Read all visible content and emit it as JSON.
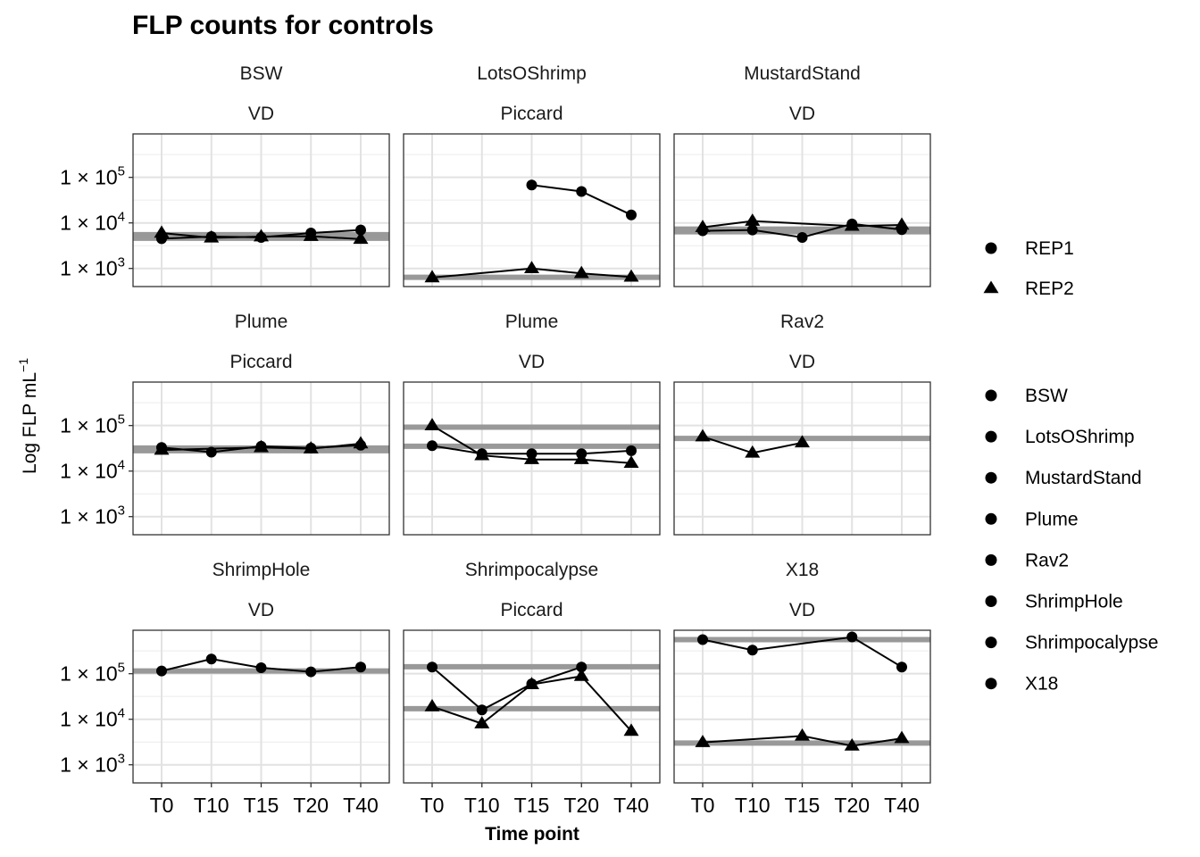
{
  "chart_data": {
    "type": "line",
    "title": "FLP counts for controls",
    "xlabel": "Time point",
    "ylabel": "Log FLP  mL",
    "ylabel_superscript": "−1",
    "y_scale": "log10",
    "ylim": [
      400,
      900000
    ],
    "y_ticks": [
      1000,
      10000,
      100000
    ],
    "y_tick_labels": [
      {
        "base": "1 × 10",
        "exp": "3"
      },
      {
        "base": "1 × 10",
        "exp": "4"
      },
      {
        "base": "1 × 10",
        "exp": "5"
      }
    ],
    "categories": [
      "T0",
      "T10",
      "T15",
      "T20",
      "T40"
    ],
    "grid": true,
    "legend_position": "right",
    "legend": {
      "replicates": [
        {
          "label": "REP1",
          "shape": "circle"
        },
        {
          "label": "REP2",
          "shape": "triangle"
        }
      ],
      "sites": [
        "BSW",
        "LotsOShrimp",
        "MustardStand",
        "Plume",
        "Rav2",
        "ShrimpHole",
        "Shrimpocalypse",
        "X18"
      ]
    },
    "panels": [
      {
        "site": "BSW",
        "cruise": "VD",
        "hlines": [
          {
            "y": 5500
          },
          {
            "y": 4600
          }
        ],
        "series": [
          {
            "name": "REP1",
            "values": [
              4500,
              5000,
              4800,
              6000,
              7000
            ]
          },
          {
            "name": "REP2",
            "values": [
              6000,
              4700,
              5000,
              5100,
              4400
            ]
          }
        ]
      },
      {
        "site": "LotsOShrimp",
        "cruise": "Piccard",
        "hlines": [
          {
            "y": 640
          }
        ],
        "series": [
          {
            "name": "REP1",
            "values": [
              null,
              null,
              68000,
              49000,
              15000
            ]
          },
          {
            "name": "REP2",
            "values": [
              630,
              null,
              1000,
              780,
              650
            ]
          }
        ]
      },
      {
        "site": "MustardStand",
        "cruise": "VD",
        "hlines": [
          {
            "y": 7300
          },
          {
            "y": 6400
          }
        ],
        "series": [
          {
            "name": "REP1",
            "values": [
              6700,
              7000,
              4800,
              9500,
              7100
            ]
          },
          {
            "name": "REP2",
            "values": [
              8000,
              11000,
              null,
              8500,
              9000
            ]
          }
        ]
      },
      {
        "site": "Plume",
        "cruise": "Piccard",
        "hlines": [
          {
            "y": 32000
          },
          {
            "y": 28000
          }
        ],
        "series": [
          {
            "name": "REP1",
            "values": [
              33000,
              26000,
              35000,
              32000,
              37000
            ]
          },
          {
            "name": "REP2",
            "values": [
              29000,
              null,
              33000,
              31000,
              40000
            ]
          }
        ]
      },
      {
        "site": "Plume",
        "cruise": "VD",
        "hlines": [
          {
            "y": 92000
          },
          {
            "y": 35000
          }
        ],
        "series": [
          {
            "name": "REP1",
            "values": [
              36000,
              24000,
              24000,
              24000,
              28000
            ]
          },
          {
            "name": "REP2",
            "values": [
              100000,
              22000,
              18000,
              18000,
              15000
            ]
          }
        ]
      },
      {
        "site": "Rav2",
        "cruise": "VD",
        "hlines": [
          {
            "y": 52000
          }
        ],
        "series": [
          {
            "name": "REP2",
            "values": [
              57000,
              25000,
              42000,
              null,
              null
            ]
          }
        ]
      },
      {
        "site": "ShrimpHole",
        "cruise": "VD",
        "hlines": [
          {
            "y": 115000
          }
        ],
        "series": [
          {
            "name": "REP1",
            "values": [
              115000,
              210000,
              135000,
              110000,
              140000
            ]
          }
        ]
      },
      {
        "site": "Shrimpocalypse",
        "cruise": "Piccard",
        "hlines": [
          {
            "y": 142000
          },
          {
            "y": 17000
          }
        ],
        "series": [
          {
            "name": "REP1",
            "values": [
              140000,
              16000,
              60000,
              140000,
              null
            ]
          },
          {
            "name": "REP2",
            "values": [
              19000,
              8000,
              58000,
              88000,
              5500
            ]
          }
        ]
      },
      {
        "site": "X18",
        "cruise": "VD",
        "hlines": [
          {
            "y": 560000
          },
          {
            "y": 3000
          }
        ],
        "series": [
          {
            "name": "REP1",
            "values": [
              560000,
              330000,
              null,
              640000,
              140000
            ]
          },
          {
            "name": "REP2",
            "values": [
              3100,
              null,
              4300,
              2600,
              3800
            ]
          }
        ]
      }
    ]
  }
}
